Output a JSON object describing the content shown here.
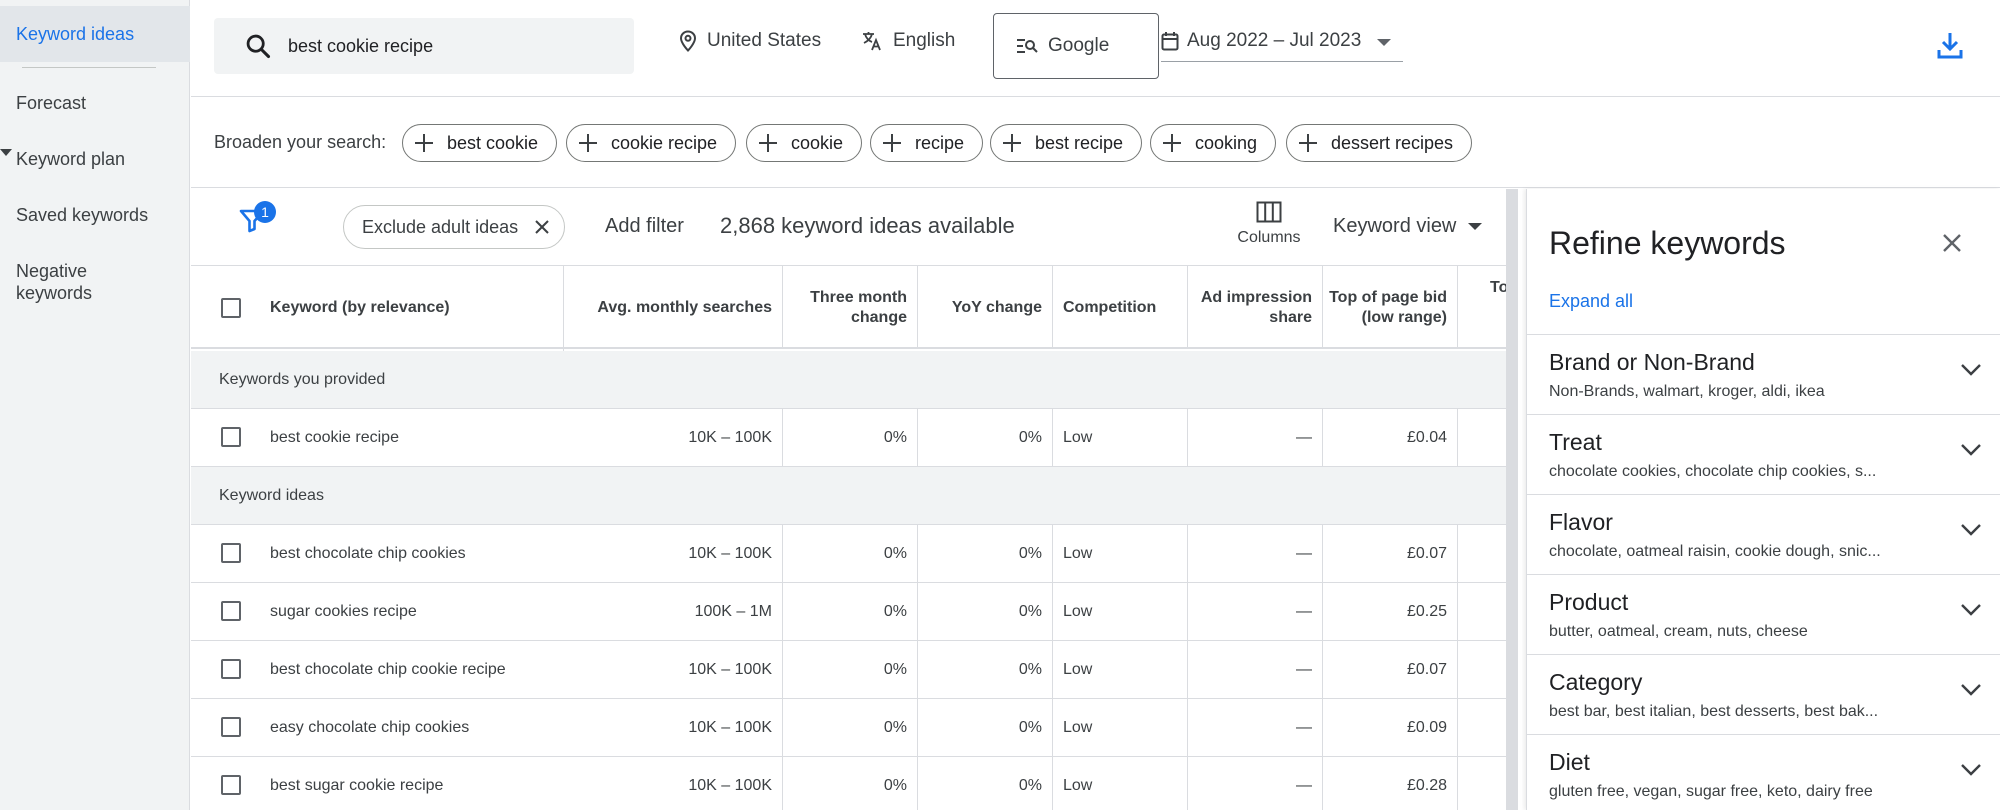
{
  "nav": {
    "items": [
      {
        "label": "Keyword ideas"
      },
      {
        "label": "Forecast"
      },
      {
        "label": "Keyword plan"
      },
      {
        "label": "Saved keywords"
      },
      {
        "label": "Negative keywords"
      }
    ]
  },
  "topbar": {
    "search_value": "best cookie recipe",
    "location": "United States",
    "language": "English",
    "network": "Google",
    "date_range": "Aug 2022 – Jul 2023",
    "icons": [
      "search-icon",
      "location-pin-icon",
      "translate-icon",
      "search-network-icon",
      "calendar-icon",
      "download-icon"
    ]
  },
  "broaden": {
    "label": "Broaden your search:",
    "chips": [
      "best cookie",
      "cookie recipe",
      "cookie",
      "recipe",
      "best recipe",
      "cooking",
      "dessert recipes"
    ]
  },
  "toolbar": {
    "filter_count": "1",
    "exclude_chip": "Exclude adult ideas",
    "add_filter": "Add filter",
    "ideas_available": "2,868 keyword ideas available",
    "columns_label": "Columns",
    "view_label": "Keyword view"
  },
  "table": {
    "headers": {
      "keyword": "Keyword (by relevance)",
      "avg": "Avg. monthly searches",
      "three_month": "Three month change",
      "yoy": "YoY change",
      "competition": "Competition",
      "ad_share": "Ad impression share",
      "top_low": "Top of page bid (low range)",
      "top_high": "Top"
    },
    "group_provided": "Keywords you provided",
    "group_ideas": "Keyword ideas",
    "provided": [
      {
        "keyword": "best cookie recipe",
        "avg": "10K – 100K",
        "three": "0%",
        "yoy": "0%",
        "comp": "Low",
        "share": "—",
        "bid": "£0.04"
      }
    ],
    "ideas": [
      {
        "keyword": "best chocolate chip cookies",
        "avg": "10K – 100K",
        "three": "0%",
        "yoy": "0%",
        "comp": "Low",
        "share": "—",
        "bid": "£0.07"
      },
      {
        "keyword": "sugar cookies recipe",
        "avg": "100K – 1M",
        "three": "0%",
        "yoy": "0%",
        "comp": "Low",
        "share": "—",
        "bid": "£0.25"
      },
      {
        "keyword": "best chocolate chip cookie recipe",
        "avg": "10K – 100K",
        "three": "0%",
        "yoy": "0%",
        "comp": "Low",
        "share": "—",
        "bid": "£0.07"
      },
      {
        "keyword": "easy chocolate chip cookies",
        "avg": "10K – 100K",
        "three": "0%",
        "yoy": "0%",
        "comp": "Low",
        "share": "—",
        "bid": "£0.09"
      },
      {
        "keyword": "best sugar cookie recipe",
        "avg": "10K – 100K",
        "three": "0%",
        "yoy": "0%",
        "comp": "Low",
        "share": "—",
        "bid": "£0.28"
      }
    ]
  },
  "refine": {
    "title": "Refine keywords",
    "expand_all": "Expand all",
    "items": [
      {
        "name": "Brand or Non-Brand",
        "sub": "Non-Brands, walmart, kroger, aldi, ikea"
      },
      {
        "name": "Treat",
        "sub": "chocolate cookies, chocolate chip cookies, s..."
      },
      {
        "name": "Flavor",
        "sub": "chocolate, oatmeal raisin, cookie dough, snic..."
      },
      {
        "name": "Product",
        "sub": "butter, oatmeal, cream, nuts, cheese"
      },
      {
        "name": "Category",
        "sub": "best bar, best italian, best desserts, best bak..."
      },
      {
        "name": "Diet",
        "sub": "gluten free, vegan, sugar free, keto, dairy free"
      }
    ]
  },
  "colors": {
    "accent": "#1a73e8",
    "nav_bg": "#f1f3f4",
    "border": "#dadce0"
  }
}
